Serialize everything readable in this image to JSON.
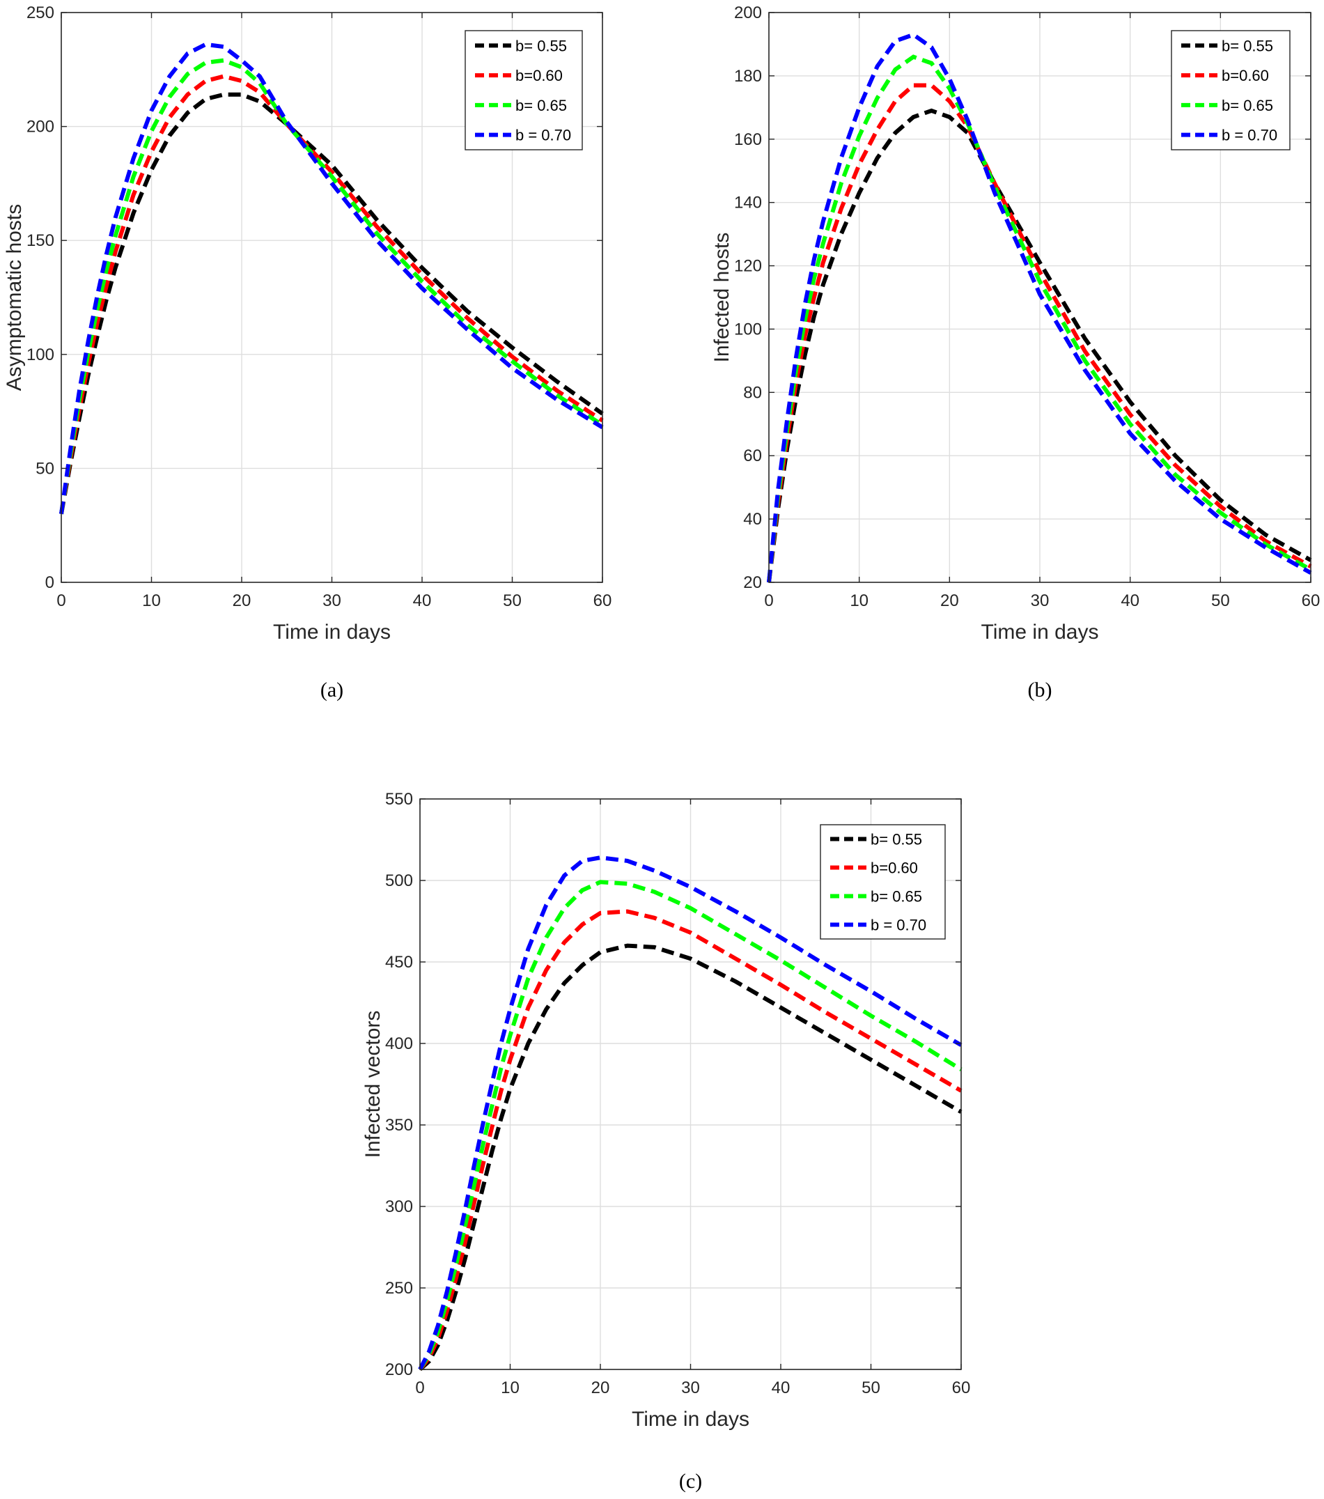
{
  "chart_data": [
    {
      "type": "line",
      "caption": "(a)",
      "title": "",
      "xlabel": "Time in days",
      "ylabel": "Asymptomatic  hosts",
      "xlim": [
        0,
        60
      ],
      "ylim": [
        0,
        250
      ],
      "xticks": [
        0,
        10,
        20,
        30,
        40,
        50,
        60
      ],
      "yticks": [
        0,
        50,
        100,
        150,
        200,
        250
      ],
      "grid": true,
      "legend_position": "top-right",
      "x": [
        0,
        1,
        2,
        3,
        4,
        5,
        6,
        8,
        10,
        12,
        14,
        16,
        18,
        20,
        22,
        25,
        30,
        35,
        40,
        45,
        50,
        55,
        60
      ],
      "series": [
        {
          "name": "b= 0.55",
          "color": "#000000",
          "values": [
            30,
            52,
            72,
            91,
            108,
            124,
            138,
            162,
            181,
            196,
            206,
            212,
            214,
            214,
            211,
            201,
            183,
            159,
            138,
            119,
            103,
            88,
            74
          ]
        },
        {
          "name": "b=0.60",
          "color": "#ff0000",
          "values": [
            30,
            54,
            76,
            96,
            114,
            130,
            145,
            170,
            189,
            204,
            214,
            220,
            222,
            220,
            215,
            201,
            180,
            156,
            135,
            116,
            99,
            84,
            71
          ]
        },
        {
          "name": "b= 0.65",
          "color": "#00ff00",
          "values": [
            30,
            56,
            80,
            101,
            120,
            137,
            152,
            178,
            198,
            213,
            223,
            228,
            229,
            226,
            219,
            201,
            178,
            153,
            132,
            113,
            97,
            82,
            69
          ]
        },
        {
          "name": "b = 0.70",
          "color": "#0000ff",
          "values": [
            30,
            58,
            84,
            106,
            126,
            144,
            160,
            186,
            207,
            222,
            232,
            236,
            235,
            229,
            222,
            202,
            175,
            150,
            129,
            111,
            94,
            80,
            68
          ]
        }
      ]
    },
    {
      "type": "line",
      "caption": "(b)",
      "title": "",
      "xlabel": "Time in days",
      "ylabel": "Infected hosts",
      "xlim": [
        0,
        60
      ],
      "ylim": [
        20,
        200
      ],
      "xticks": [
        0,
        10,
        20,
        30,
        40,
        50,
        60
      ],
      "yticks": [
        20,
        40,
        60,
        80,
        100,
        120,
        140,
        160,
        180,
        200
      ],
      "grid": true,
      "legend_position": "top-right",
      "x": [
        0,
        1,
        2,
        3,
        4,
        5,
        6,
        8,
        10,
        12,
        14,
        16,
        18,
        20,
        22,
        25,
        30,
        35,
        40,
        45,
        50,
        55,
        60
      ],
      "series": [
        {
          "name": "b= 0.55",
          "color": "#000000",
          "values": [
            20,
            43,
            62,
            78,
            92,
            104,
            114,
            130,
            143,
            154,
            162,
            167,
            169,
            167,
            162,
            146,
            121,
            97,
            77,
            60,
            46,
            35,
            27
          ]
        },
        {
          "name": "b=0.60",
          "color": "#ff0000",
          "values": [
            20,
            45,
            65,
            83,
            98,
            110,
            121,
            138,
            152,
            163,
            172,
            177,
            177,
            172,
            164,
            146,
            118,
            93,
            73,
            57,
            44,
            33,
            25
          ]
        },
        {
          "name": "b= 0.65",
          "color": "#00ff00",
          "values": [
            20,
            47,
            68,
            87,
            103,
            116,
            127,
            146,
            161,
            173,
            182,
            186,
            184,
            176,
            165,
            145,
            115,
            90,
            70,
            54,
            42,
            32,
            24
          ]
        },
        {
          "name": "b = 0.70",
          "color": "#0000ff",
          "values": [
            20,
            49,
            71,
            91,
            108,
            122,
            134,
            154,
            170,
            183,
            191,
            193,
            189,
            179,
            166,
            143,
            111,
            87,
            67,
            52,
            40,
            31,
            23
          ]
        }
      ]
    },
    {
      "type": "line",
      "caption": "(c)",
      "title": "",
      "xlabel": "Time in days",
      "ylabel": "Infected vectors",
      "xlim": [
        0,
        60
      ],
      "ylim": [
        200,
        550
      ],
      "xticks": [
        0,
        10,
        20,
        30,
        40,
        50,
        60
      ],
      "yticks": [
        200,
        250,
        300,
        350,
        400,
        450,
        500,
        550
      ],
      "grid": true,
      "legend_position": "top-right",
      "x": [
        0,
        1,
        2,
        3,
        4,
        5,
        6,
        7,
        8,
        9,
        10,
        12,
        14,
        16,
        18,
        20,
        23,
        26,
        30,
        35,
        40,
        45,
        50,
        55,
        60
      ],
      "series": [
        {
          "name": "b= 0.55",
          "color": "#000000",
          "values": [
            200,
            205,
            215,
            230,
            248,
            268,
            290,
            312,
            334,
            354,
            372,
            400,
            421,
            437,
            448,
            456,
            460,
            459,
            452,
            438,
            422,
            406,
            390,
            374,
            358
          ]
        },
        {
          "name": "b=0.60",
          "color": "#ff0000",
          "values": [
            200,
            207,
            219,
            236,
            256,
            278,
            302,
            326,
            349,
            371,
            390,
            422,
            445,
            462,
            473,
            480,
            481,
            477,
            468,
            452,
            436,
            419,
            403,
            387,
            371
          ]
        },
        {
          "name": "b= 0.65",
          "color": "#00ff00",
          "values": [
            200,
            209,
            223,
            242,
            264,
            288,
            313,
            338,
            362,
            385,
            405,
            440,
            465,
            483,
            494,
            499,
            498,
            493,
            483,
            467,
            451,
            434,
            417,
            401,
            384
          ]
        },
        {
          "name": "b = 0.70",
          "color": "#0000ff",
          "values": [
            200,
            211,
            227,
            248,
            272,
            298,
            325,
            351,
            376,
            400,
            421,
            458,
            485,
            503,
            512,
            514,
            512,
            506,
            496,
            481,
            465,
            448,
            432,
            415,
            399
          ]
        }
      ]
    }
  ]
}
